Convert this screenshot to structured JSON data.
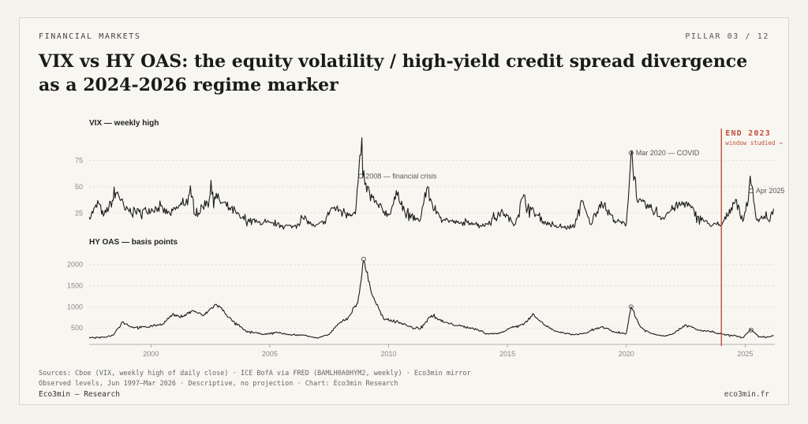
{
  "header": {
    "kicker": "FINANCIAL MARKETS",
    "pillar": "PILLAR 03 / 12",
    "title": "VIX vs HY OAS: the equity volatility / high-yield credit spread divergence as a 2024-2026 regime marker"
  },
  "footer": {
    "sources": "Sources: Cboe (VIX, weekly high of daily close) · ICE BofA via FRED (BAMLH0A0HYM2, weekly) · Eco3min mirror",
    "notes": "Observed levels, Jun 1997–Mar 2026 · Descriptive, no projection · Chart: Eco3min Research",
    "brand": "Eco3min — Research",
    "site": "eco3min.fr"
  },
  "colors": {
    "line": "#1c1c1c",
    "accent": "#c0503a",
    "grid": "#d8d4cb",
    "axis": "#888888"
  },
  "chart_data": [
    {
      "type": "line",
      "title": "VIX — weekly high",
      "xlim": [
        1997.4,
        2026.25
      ],
      "ylim": [
        8,
        88
      ],
      "yticks": [
        25,
        50,
        75
      ],
      "xticks": [
        2000,
        2005,
        2010,
        2015,
        2020,
        2025
      ],
      "grid": true,
      "anchors": [
        [
          1997.4,
          21
        ],
        [
          1997.8,
          34
        ],
        [
          1998.0,
          22
        ],
        [
          1998.6,
          45
        ],
        [
          1998.9,
          28
        ],
        [
          1999.5,
          26
        ],
        [
          2000.3,
          30
        ],
        [
          2000.8,
          24
        ],
        [
          2001.3,
          33
        ],
        [
          2001.7,
          40
        ],
        [
          2002.0,
          25
        ],
        [
          2002.6,
          45
        ],
        [
          2002.9,
          36
        ],
        [
          2003.3,
          30
        ],
        [
          2003.8,
          20
        ],
        [
          2004.5,
          16
        ],
        [
          2005.3,
          14
        ],
        [
          2006.0,
          12
        ],
        [
          2006.4,
          20
        ],
        [
          2006.9,
          12
        ],
        [
          2007.3,
          17
        ],
        [
          2007.6,
          30
        ],
        [
          2008.0,
          27
        ],
        [
          2008.6,
          24
        ],
        [
          2008.83,
          80
        ],
        [
          2009.0,
          52
        ],
        [
          2009.4,
          35
        ],
        [
          2010.0,
          23
        ],
        [
          2010.4,
          45
        ],
        [
          2010.7,
          24
        ],
        [
          2011.3,
          17
        ],
        [
          2011.6,
          48
        ],
        [
          2012.0,
          24
        ],
        [
          2012.5,
          18
        ],
        [
          2013.0,
          15
        ],
        [
          2013.5,
          16
        ],
        [
          2014.0,
          13
        ],
        [
          2014.8,
          26
        ],
        [
          2015.3,
          14
        ],
        [
          2015.65,
          40
        ],
        [
          2016.0,
          28
        ],
        [
          2016.5,
          17
        ],
        [
          2017.0,
          12
        ],
        [
          2017.8,
          11
        ],
        [
          2018.1,
          37
        ],
        [
          2018.5,
          14
        ],
        [
          2018.95,
          36
        ],
        [
          2019.5,
          18
        ],
        [
          2020.0,
          14
        ],
        [
          2020.2,
          82
        ],
        [
          2020.5,
          35
        ],
        [
          2021.0,
          30
        ],
        [
          2021.5,
          20
        ],
        [
          2022.0,
          30
        ],
        [
          2022.5,
          35
        ],
        [
          2023.0,
          22
        ],
        [
          2023.5,
          14
        ],
        [
          2024.0,
          13
        ],
        [
          2024.6,
          38
        ],
        [
          2024.9,
          17
        ],
        [
          2025.25,
          52
        ],
        [
          2025.5,
          18
        ],
        [
          2025.8,
          22
        ],
        [
          2026.0,
          17
        ],
        [
          2026.2,
          29
        ]
      ],
      "annotations": [
        {
          "x": 2008.83,
          "y": 60,
          "text": "2008 — financial crisis"
        },
        {
          "x": 2020.2,
          "y": 82,
          "text": "Mar 2020 — COVID"
        },
        {
          "x": 2025.25,
          "y": 46,
          "text": "Apr 2025"
        }
      ]
    },
    {
      "type": "line",
      "title": "HY OAS — basis points",
      "xlim": [
        1997.4,
        2026.25
      ],
      "ylim": [
        150,
        2200
      ],
      "yticks": [
        500,
        1000,
        1500,
        2000
      ],
      "xticks": [
        2000,
        2005,
        2010,
        2015,
        2020,
        2025
      ],
      "grid": true,
      "anchors": [
        [
          1997.4,
          270
        ],
        [
          1998.0,
          280
        ],
        [
          1998.4,
          330
        ],
        [
          1998.8,
          650
        ],
        [
          1999.2,
          520
        ],
        [
          1999.8,
          520
        ],
        [
          2000.5,
          600
        ],
        [
          2000.9,
          820
        ],
        [
          2001.2,
          760
        ],
        [
          2001.8,
          910
        ],
        [
          2002.2,
          790
        ],
        [
          2002.7,
          1050
        ],
        [
          2002.9,
          1000
        ],
        [
          2003.4,
          680
        ],
        [
          2004.0,
          420
        ],
        [
          2004.8,
          350
        ],
        [
          2005.3,
          400
        ],
        [
          2005.8,
          340
        ],
        [
          2006.5,
          330
        ],
        [
          2007.0,
          260
        ],
        [
          2007.5,
          350
        ],
        [
          2007.9,
          600
        ],
        [
          2008.3,
          750
        ],
        [
          2008.7,
          1100
        ],
        [
          2008.95,
          2100
        ],
        [
          2009.3,
          1300
        ],
        [
          2009.8,
          700
        ],
        [
          2010.4,
          650
        ],
        [
          2010.9,
          530
        ],
        [
          2011.3,
          470
        ],
        [
          2011.8,
          800
        ],
        [
          2012.3,
          640
        ],
        [
          2012.9,
          560
        ],
        [
          2013.5,
          500
        ],
        [
          2014.2,
          360
        ],
        [
          2014.7,
          380
        ],
        [
          2015.1,
          500
        ],
        [
          2015.7,
          600
        ],
        [
          2016.1,
          830
        ],
        [
          2016.5,
          600
        ],
        [
          2017.0,
          420
        ],
        [
          2017.8,
          340
        ],
        [
          2018.3,
          380
        ],
        [
          2018.95,
          530
        ],
        [
          2019.5,
          400
        ],
        [
          2020.0,
          370
        ],
        [
          2020.2,
          1000
        ],
        [
          2020.6,
          520
        ],
        [
          2021.0,
          380
        ],
        [
          2021.6,
          310
        ],
        [
          2022.0,
          380
        ],
        [
          2022.5,
          580
        ],
        [
          2023.0,
          450
        ],
        [
          2023.5,
          420
        ],
        [
          2024.0,
          350
        ],
        [
          2024.5,
          320
        ],
        [
          2024.9,
          280
        ],
        [
          2025.25,
          450
        ],
        [
          2025.6,
          290
        ],
        [
          2026.0,
          290
        ],
        [
          2026.2,
          320
        ]
      ],
      "annotations": [
        {
          "x": 2008.95,
          "y": 2130,
          "text": ""
        },
        {
          "x": 2020.2,
          "y": 1000,
          "text": ""
        },
        {
          "x": 2025.25,
          "y": 450,
          "text": ""
        }
      ]
    }
  ],
  "marker": {
    "x": 2024.0,
    "label": "END 2023",
    "sublabel": "window studied →"
  }
}
